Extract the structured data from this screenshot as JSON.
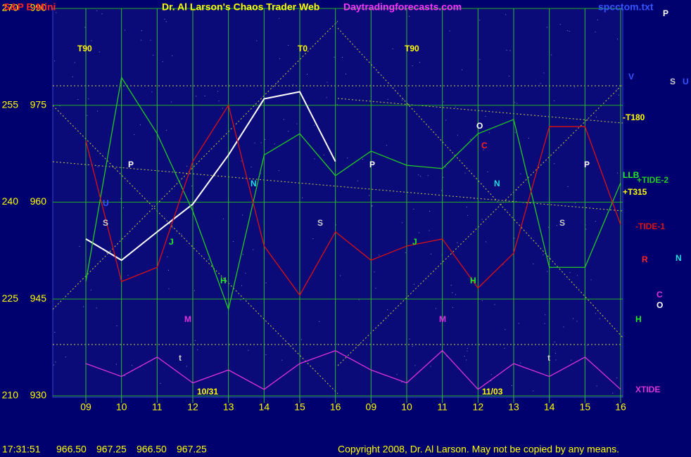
{
  "chart_data": {
    "type": "line",
    "title": "S&P E-Mini",
    "subtitle": "Dr. Al Larson's Chaos Trader Web",
    "site": "Daytradingforecasts.com",
    "file": "spcctom.txt",
    "categories": [
      "09",
      "10",
      "11",
      "12",
      "13",
      "14",
      "15",
      "16",
      "09",
      "10",
      "11",
      "12",
      "13",
      "14",
      "15",
      "16"
    ],
    "ylim": [
      930,
      990
    ],
    "yticks": [
      930,
      945,
      960,
      975,
      990
    ],
    "y2lim": [
      210,
      270
    ],
    "y2ticks": [
      210,
      225,
      240,
      255,
      270
    ],
    "grid": true,
    "series": [
      {
        "color": "#ffffff",
        "values": [
          954.3,
          951,
          955.4,
          959.7,
          967.3,
          976,
          977.1,
          966.3,
          null,
          null,
          null,
          null,
          null,
          null,
          null,
          null
        ]
      },
      {
        "name": "+TIDE-2",
        "color": "#22cc22",
        "values": [
          947.7,
          979.3,
          970.6,
          958.6,
          943.4,
          967.3,
          970.6,
          964.1,
          967.9,
          965.7,
          965.2,
          970.6,
          972.8,
          949.9,
          949.9,
          963
        ]
      },
      {
        "name": "-TIDE-1",
        "color": "#dd1111",
        "values": [
          969.5,
          947.7,
          949.9,
          966.3,
          975,
          953.2,
          945.6,
          955.4,
          951,
          953.2,
          954.3,
          946.7,
          952.1,
          971.7,
          971.7,
          956.5
        ]
      },
      {
        "name": "XTIDE",
        "color": "#dd33dd",
        "values": [
          935,
          933,
          936,
          932,
          934,
          931,
          935,
          937,
          934,
          932,
          937,
          931,
          935,
          933,
          936,
          931
        ]
      }
    ],
    "annotations": [
      {
        "text": "T90",
        "color": "#ffff00"
      },
      {
        "text": "T0",
        "color": "#ffff00"
      },
      {
        "text": "T90",
        "color": "#ffff00"
      },
      {
        "text": "10/31",
        "color": "#ffff00"
      },
      {
        "text": "11/03",
        "color": "#ffff00"
      },
      {
        "text": "-T180",
        "color": "#ffff00"
      },
      {
        "text": "+T315",
        "color": "#ffff00"
      },
      {
        "text": "LLB",
        "color": "#22ee22"
      },
      {
        "text": "P",
        "color": "#ffffff"
      },
      {
        "text": "P",
        "color": "#ffffff"
      },
      {
        "text": "P",
        "color": "#ffffff"
      },
      {
        "text": "S",
        "color": "#cccccc"
      },
      {
        "text": "S",
        "color": "#cccccc"
      },
      {
        "text": "S",
        "color": "#cccccc"
      },
      {
        "text": "U",
        "color": "#3355ff"
      },
      {
        "text": "J",
        "color": "#22ee22"
      },
      {
        "text": "J",
        "color": "#22ee22"
      },
      {
        "text": "H",
        "color": "#22ee22"
      },
      {
        "text": "H",
        "color": "#22ee22"
      },
      {
        "text": "M",
        "color": "#dd33dd"
      },
      {
        "text": "M",
        "color": "#dd33dd"
      },
      {
        "text": "N",
        "color": "#22dddd"
      },
      {
        "text": "N",
        "color": "#22dddd"
      },
      {
        "text": "C",
        "color": "#ff2222"
      },
      {
        "text": "O",
        "color": "#ffffff"
      },
      {
        "text": "t",
        "color": "#cccccc"
      },
      {
        "text": "t",
        "color": "#cccccc"
      },
      {
        "text": "V",
        "color": "#3355ff"
      },
      {
        "text": "S",
        "color": "#cccccc"
      },
      {
        "text": "U",
        "color": "#3355ff"
      },
      {
        "text": "P",
        "color": "#ffffff"
      },
      {
        "text": "N",
        "color": "#22dddd"
      },
      {
        "text": "R",
        "color": "#ff2222"
      },
      {
        "text": "C",
        "color": "#dd33dd"
      },
      {
        "text": "O",
        "color": "#ffffff"
      },
      {
        "text": "H",
        "color": "#22ee22"
      }
    ],
    "status": {
      "time": "17:31:51",
      "quotes": [
        "966.50",
        "967.25",
        "966.50",
        "967.25"
      ]
    },
    "copyright": "Copyright 2008, Dr. Al Larson. May not be copied by any means."
  }
}
